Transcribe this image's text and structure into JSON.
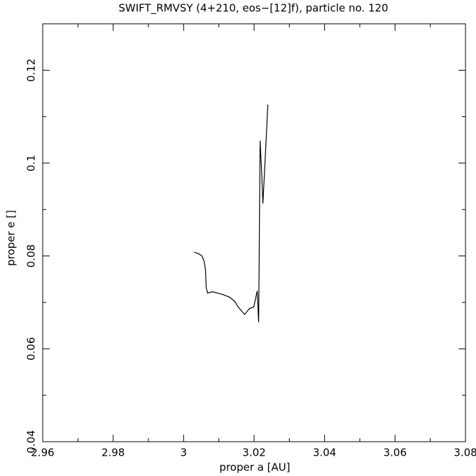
{
  "chart_data": {
    "type": "line",
    "title": "SWIFT_RMVSY (4+210, eos−[12]f), particle no. 120",
    "x_label": "proper a [AU]",
    "y_label": "proper e []",
    "x": [
      3.003,
      3.0042,
      3.0052,
      3.0058,
      3.0062,
      3.0064,
      3.0068,
      3.0082,
      3.0096,
      3.0111,
      3.0131,
      3.0145,
      3.0155,
      3.0173,
      3.0187,
      3.0199,
      3.0209,
      3.0211,
      3.0213,
      3.0217,
      3.0221,
      3.0225,
      3.0227,
      3.0231,
      3.0235,
      3.0239
    ],
    "series": [
      {
        "color": "#000000",
        "values": [
          0.0808,
          0.0805,
          0.08,
          0.0789,
          0.077,
          0.0732,
          0.072,
          0.0723,
          0.072,
          0.0717,
          0.0711,
          0.0702,
          0.069,
          0.0674,
          0.0687,
          0.069,
          0.0725,
          0.0687,
          0.0657,
          0.1048,
          0.0988,
          0.0913,
          0.0943,
          0.1003,
          0.1063,
          0.1126
        ]
      }
    ],
    "xlim": [
      2.96,
      3.08
    ],
    "xticks": [
      2.96,
      2.98,
      3,
      3.02,
      3.04,
      3.06,
      3.08
    ],
    "ylim": [
      0.04,
      0.13
    ],
    "yticks": [
      0.04,
      0.06,
      0.08,
      0.1,
      0.12
    ],
    "grid": false
  }
}
